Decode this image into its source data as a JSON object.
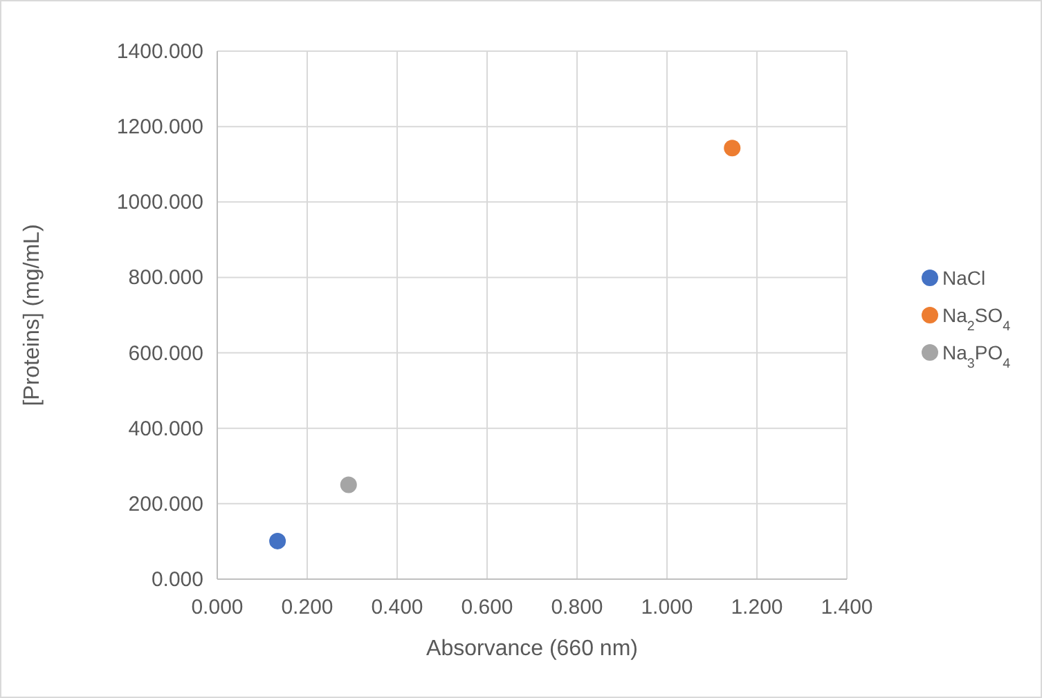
{
  "chart_data": {
    "type": "scatter",
    "xlabel": "Absorvance (660 nm)",
    "ylabel": "[Proteins] (mg/mL)",
    "xlim": [
      0,
      1.4
    ],
    "ylim": [
      0,
      1400
    ],
    "xticks": [
      {
        "value": 0,
        "label": "0.000"
      },
      {
        "value": 0.2,
        "label": "0.200"
      },
      {
        "value": 0.4,
        "label": "0.400"
      },
      {
        "value": 0.6,
        "label": "0.600"
      },
      {
        "value": 0.8,
        "label": "0.800"
      },
      {
        "value": 1,
        "label": "1.000"
      },
      {
        "value": 1.2,
        "label": "1.200"
      },
      {
        "value": 1.4,
        "label": "1.400"
      }
    ],
    "yticks": [
      {
        "value": 0,
        "label": "0.000"
      },
      {
        "value": 200,
        "label": "200.000"
      },
      {
        "value": 400,
        "label": "400.000"
      },
      {
        "value": 600,
        "label": "600.000"
      },
      {
        "value": 800,
        "label": "800.000"
      },
      {
        "value": 1000,
        "label": "1000.000"
      },
      {
        "value": 1200,
        "label": "1200.000"
      },
      {
        "value": 1400,
        "label": "1400.000"
      }
    ],
    "grid": true,
    "legend": "right",
    "marker": "circle",
    "series": [
      {
        "name": "NaCl",
        "color": "#4472c4",
        "x": [
          0.134
        ],
        "values": [
          101
        ]
      },
      {
        "name": "Na$_{2}$SO$_{4}$",
        "color": "#ed7d31",
        "x": [
          1.145
        ],
        "values": [
          1143
        ]
      },
      {
        "name": "Na$_{3}$PO$_{4}$",
        "color": "#a5a5a5",
        "x": [
          0.292
        ],
        "values": [
          250
        ]
      }
    ]
  }
}
